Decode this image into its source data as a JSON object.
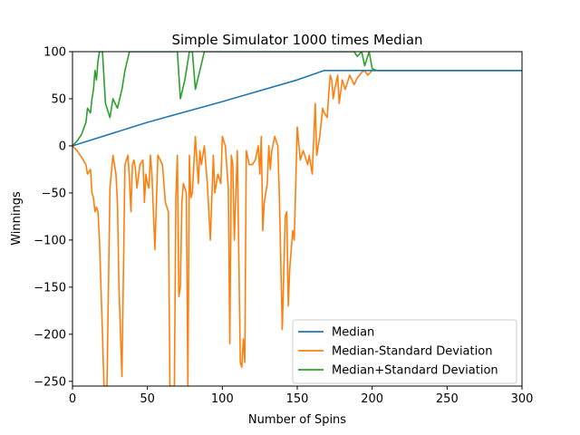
{
  "chart_data": {
    "type": "line",
    "title": "Simple Simulator 1000 times Median",
    "xlabel": "Number of Spins",
    "ylabel": "Winnings",
    "xlim": [
      0,
      300
    ],
    "ylim": [
      -255,
      100
    ],
    "xticks": [
      0,
      50,
      100,
      150,
      200,
      250,
      300
    ],
    "yticks": [
      -250,
      -200,
      -150,
      -100,
      -50,
      0,
      50,
      100
    ],
    "ytick_labels": [
      "−250",
      "−200",
      "−150",
      "−100",
      "−50",
      "0",
      "50",
      "100"
    ],
    "grid": false,
    "legend_position": "lower-right",
    "series": [
      {
        "name": "Median",
        "color": "#1f77b4",
        "x": [
          0,
          50,
          100,
          150,
          168,
          200,
          300
        ],
        "y": [
          0,
          25,
          47,
          70,
          80,
          80,
          80
        ]
      },
      {
        "name": "Median-Standard Deviation",
        "color": "#ff7f0e",
        "x": [
          0,
          3,
          6,
          9,
          10,
          12,
          13,
          14,
          15,
          16,
          17,
          18,
          19,
          20,
          21,
          23,
          25,
          27,
          29,
          30,
          31,
          33,
          35,
          37,
          38,
          39,
          40,
          41,
          42,
          43,
          45,
          47,
          48,
          49,
          50,
          51,
          52,
          53,
          55,
          57,
          60,
          62,
          64,
          65,
          66,
          67,
          68,
          69,
          70,
          71,
          72,
          73,
          74,
          75,
          76,
          77,
          78,
          79,
          80,
          82,
          84,
          85,
          86,
          88,
          90,
          92,
          94,
          95,
          97,
          99,
          100,
          102,
          104,
          105,
          106,
          107,
          108,
          110,
          112,
          113,
          114,
          115,
          116,
          118,
          120,
          122,
          124,
          125,
          126,
          127,
          128,
          130,
          131,
          132,
          133,
          135,
          137,
          138,
          140,
          142,
          143,
          144,
          145,
          147,
          148,
          150,
          152,
          153,
          154,
          155,
          157,
          158,
          160,
          162,
          163,
          165,
          167,
          168,
          170,
          171,
          172,
          173,
          174,
          175,
          177,
          178,
          180,
          182,
          185,
          188,
          190,
          193,
          195,
          197,
          200,
          203,
          300
        ],
        "y": [
          0,
          -5,
          -12,
          -20,
          -30,
          -25,
          -50,
          -55,
          -70,
          -65,
          -70,
          -100,
          -150,
          -200,
          -255,
          -255,
          -45,
          -10,
          -30,
          -60,
          -150,
          -245,
          -20,
          -10,
          -35,
          -70,
          -20,
          -15,
          -25,
          -45,
          -20,
          -15,
          -60,
          -30,
          -40,
          -45,
          -10,
          -30,
          -110,
          -10,
          -20,
          -60,
          -70,
          -255,
          -255,
          -255,
          -255,
          -55,
          -10,
          -160,
          -150,
          -60,
          -40,
          -45,
          -50,
          -255,
          -10,
          -55,
          -50,
          10,
          -40,
          -5,
          -20,
          0,
          -40,
          -100,
          -10,
          -50,
          -30,
          -40,
          10,
          0,
          -45,
          -210,
          -10,
          -20,
          -100,
          -5,
          -230,
          -235,
          -205,
          -230,
          -5,
          -20,
          -20,
          -15,
          0,
          -30,
          10,
          -90,
          -60,
          -40,
          0,
          -25,
          -5,
          10,
          0,
          -50,
          -195,
          -75,
          -70,
          -170,
          -130,
          -90,
          -100,
          20,
          -15,
          -10,
          -5,
          -10,
          -20,
          -10,
          -30,
          45,
          -10,
          10,
          40,
          35,
          30,
          55,
          75,
          70,
          50,
          60,
          75,
          45,
          70,
          60,
          75,
          65,
          72,
          78,
          80,
          75,
          80,
          80,
          80
        ]
      },
      {
        "name": "Median+Standard Deviation",
        "color": "#2ca02c",
        "x": [
          0,
          3,
          6,
          9,
          10,
          12,
          13,
          14,
          15,
          16,
          17,
          18,
          20,
          22,
          25,
          27,
          30,
          33,
          35,
          38,
          40,
          42,
          45,
          47,
          50,
          52,
          55,
          58,
          60,
          63,
          65,
          68,
          70,
          72,
          75,
          78,
          80,
          82,
          85,
          88,
          90,
          92,
          95,
          98,
          100,
          103,
          105,
          108,
          110,
          113,
          115,
          118,
          120,
          123,
          125,
          128,
          130,
          133,
          135,
          138,
          140,
          143,
          145,
          148,
          150,
          153,
          155,
          158,
          160,
          163,
          165,
          168,
          170,
          173,
          175,
          178,
          180,
          183,
          185,
          188,
          190,
          193,
          195,
          198,
          200,
          203,
          300
        ],
        "y": [
          0,
          5,
          12,
          25,
          40,
          35,
          50,
          60,
          80,
          70,
          90,
          100,
          100,
          45,
          30,
          50,
          40,
          60,
          80,
          100,
          100,
          100,
          100,
          100,
          100,
          100,
          100,
          100,
          100,
          100,
          100,
          100,
          100,
          50,
          70,
          100,
          100,
          60,
          80,
          100,
          100,
          100,
          100,
          100,
          100,
          100,
          100,
          100,
          100,
          100,
          100,
          100,
          100,
          100,
          100,
          100,
          100,
          100,
          100,
          100,
          100,
          100,
          100,
          100,
          100,
          100,
          100,
          100,
          100,
          100,
          100,
          100,
          100,
          100,
          100,
          100,
          100,
          100,
          100,
          100,
          95,
          100,
          85,
          100,
          82,
          80,
          80
        ]
      }
    ]
  }
}
